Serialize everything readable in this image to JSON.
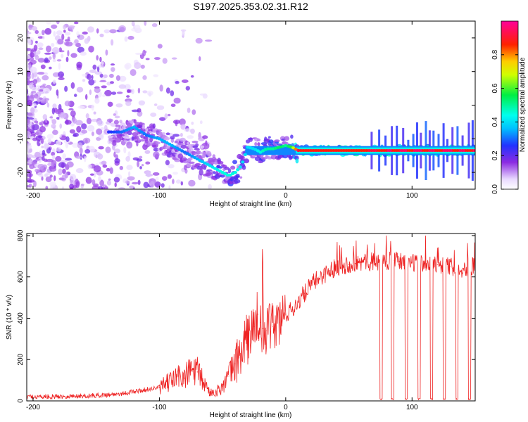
{
  "chart_data": [
    {
      "type": "heatmap",
      "title": "S197.2025.353.02.31.R12",
      "xlabel": "Height of straight line (km)",
      "ylabel": "Frequency (Hz)",
      "xlim": [
        -205,
        150
      ],
      "ylim": [
        -25,
        25
      ],
      "xticks": [
        -200,
        -100,
        0,
        100
      ],
      "yticks": [
        -20,
        -10,
        0,
        10,
        20
      ],
      "colorbar": {
        "label": "Normalized spectral amplitude",
        "range": [
          0,
          1
        ],
        "ticks": [
          "0.0",
          "0.2",
          "0.4",
          "0.6",
          "0.8"
        ],
        "colormap": "white-violet-blue-cyan-green-yellow-red-magenta"
      },
      "trace": {
        "description": "Dominant frequency track vs height",
        "x": [
          -140,
          -130,
          -120,
          -110,
          -100,
          -90,
          -80,
          -70,
          -60,
          -50,
          -45,
          -40,
          -35,
          -30,
          -25,
          -20,
          -15,
          -10,
          -5,
          0,
          5,
          10,
          20,
          40,
          60,
          80,
          100,
          120,
          150
        ],
        "y": [
          -8,
          -8,
          -6.5,
          -9,
          -10,
          -12,
          -14,
          -16,
          -18,
          -20,
          -21,
          -20,
          -18,
          -12.5,
          -13,
          -14,
          -13,
          -13,
          -12.5,
          -12,
          -12.5,
          -13.5,
          -13.5,
          -13.5,
          -13.5,
          -13.5,
          -13.5,
          -13.5,
          -13.5
        ],
        "peak_amplitude": [
          0.25,
          0.3,
          0.35,
          0.3,
          0.35,
          0.35,
          0.3,
          0.35,
          0.4,
          0.45,
          0.45,
          0.45,
          0.4,
          0.4,
          0.4,
          0.45,
          0.5,
          0.5,
          0.55,
          0.5,
          0.6,
          0.95,
          0.95,
          0.95,
          0.9,
          0.95,
          0.95,
          0.95,
          0.95
        ]
      },
      "noise_region": {
        "x_range": [
          -205,
          -60
        ],
        "y_range": [
          -25,
          25
        ],
        "amplitude": 0.1
      }
    },
    {
      "type": "line",
      "title": "",
      "xlabel": "Height of straight line (km)",
      "ylabel": "SNR (10 * v/v)",
      "xlim": [
        -205,
        150
      ],
      "ylim": [
        0,
        810
      ],
      "xticks": [
        -200,
        -100,
        0,
        100
      ],
      "yticks": [
        0,
        200,
        400,
        600,
        800
      ],
      "series": [
        {
          "name": "SNR",
          "color": "#ee2222",
          "x": [
            -205,
            -190,
            -175,
            -160,
            -150,
            -140,
            -130,
            -120,
            -110,
            -100,
            -95,
            -90,
            -85,
            -80,
            -75,
            -70,
            -65,
            -60,
            -55,
            -50,
            -45,
            -40,
            -35,
            -30,
            -25,
            -22,
            -20,
            -18,
            -15,
            -10,
            -5,
            0,
            5,
            10,
            15,
            20,
            25,
            30,
            35,
            40,
            45,
            50,
            55,
            60,
            65,
            70,
            74,
            76,
            80,
            84,
            86,
            90,
            95,
            100,
            105,
            110,
            115,
            120,
            125,
            130,
            135,
            140,
            145,
            150
          ],
          "values": [
            20,
            20,
            22,
            24,
            26,
            30,
            35,
            45,
            55,
            65,
            80,
            100,
            120,
            110,
            150,
            140,
            90,
            40,
            45,
            70,
            120,
            180,
            240,
            300,
            360,
            420,
            380,
            350,
            340,
            360,
            380,
            420,
            440,
            480,
            520,
            560,
            590,
            610,
            630,
            650,
            655,
            660,
            665,
            670,
            672,
            675,
            676,
            10,
            676,
            10,
            680,
            675,
            10,
            670,
            10,
            665,
            10,
            660,
            10,
            650,
            10,
            640,
            10,
            660
          ]
        }
      ]
    }
  ]
}
